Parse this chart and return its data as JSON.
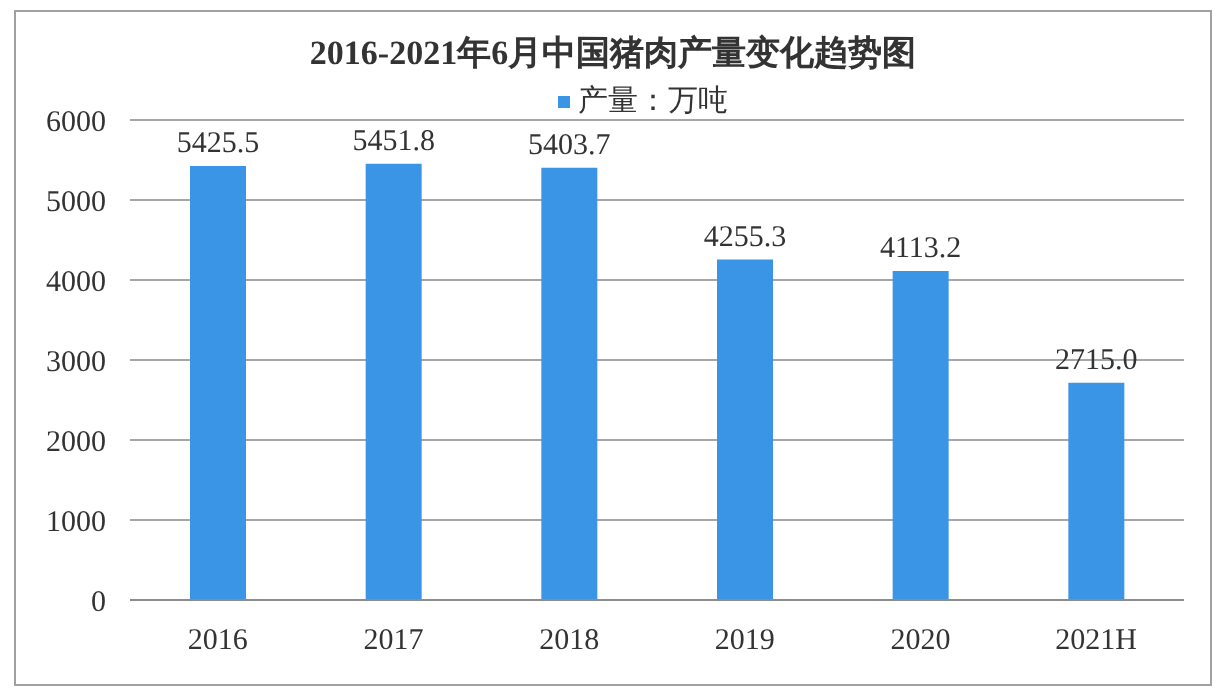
{
  "chart_data": {
    "type": "bar",
    "title": "2016-2021年6月中国猪肉产量变化趋势图",
    "categories": [
      "2016",
      "2017",
      "2018",
      "2019",
      "2020",
      "2021H"
    ],
    "series": [
      {
        "name": "产量：万吨",
        "color": "#3b95e6",
        "values": [
          5425.5,
          5451.8,
          5403.7,
          4255.3,
          4113.2,
          2715.0
        ],
        "value_labels": [
          "5425.5",
          "5451.8",
          "5403.7",
          "4255.3",
          "4113.2",
          "2715.0"
        ]
      }
    ],
    "ylim": [
      0,
      6000
    ],
    "yticks": [
      0,
      1000,
      2000,
      3000,
      4000,
      5000,
      6000
    ],
    "grid": "y",
    "legend": "top"
  }
}
